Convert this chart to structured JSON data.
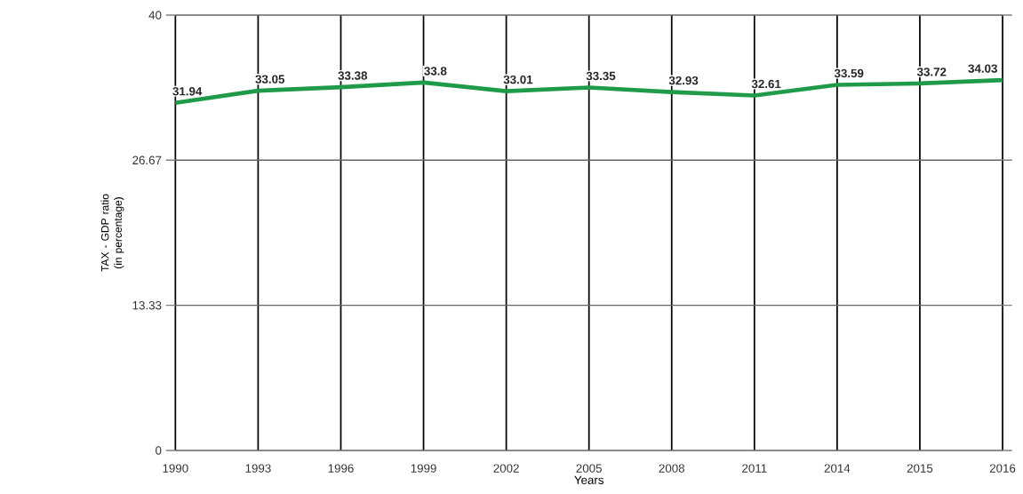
{
  "chart_data": {
    "type": "line",
    "xlabel": "Years",
    "ylabel": "TAX - GDP ratio (in percentage)",
    "categories": [
      "1990",
      "1993",
      "1996",
      "1999",
      "2002",
      "2005",
      "2008",
      "2011",
      "2014",
      "2015",
      "2016"
    ],
    "values": [
      31.94,
      33.05,
      33.38,
      33.8,
      33.01,
      33.35,
      32.93,
      32.61,
      33.59,
      33.72,
      34.03
    ],
    "color": "#1e9a48",
    "ylim": [
      0,
      40
    ],
    "yticks": [
      0,
      13.33,
      26.67,
      40
    ],
    "grid": true,
    "data_labels": true,
    "marker": "none",
    "line_style": "solid"
  }
}
